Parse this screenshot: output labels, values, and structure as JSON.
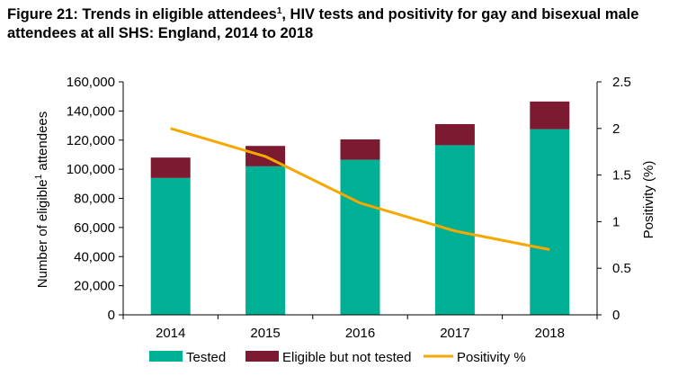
{
  "title": {
    "part1": "Figure 21: Trends in eligible attendees",
    "sup": "1",
    "part2": ", HIV tests and positivity for gay and bisexual male attendees at all SHS: England, 2014 to 2018"
  },
  "colors": {
    "tested": "#00b094",
    "eligible_not_tested": "#7b1a30",
    "positivity": "#f5a800",
    "axis": "#000000"
  },
  "chart_data": {
    "type": "bar",
    "stacked": true,
    "categories": [
      "2014",
      "2015",
      "2016",
      "2017",
      "2018"
    ],
    "series": [
      {
        "name": "Tested",
        "type": "bar",
        "axis": "left",
        "values": [
          94000,
          102000,
          106500,
          116500,
          127500
        ]
      },
      {
        "name": "Eligible but not tested",
        "type": "bar",
        "axis": "left",
        "values": [
          14000,
          14000,
          14000,
          14500,
          19000
        ]
      },
      {
        "name": "Positivity %",
        "type": "line",
        "axis": "right",
        "values": [
          2.0,
          1.7,
          1.2,
          0.9,
          0.7
        ]
      }
    ],
    "ylabel": {
      "main": "Number of eligible",
      "sup": "1",
      "rest": " attendees"
    },
    "y2label": "Positivity (%)",
    "ylim": [
      0,
      160000
    ],
    "y2lim": [
      0,
      2.5
    ],
    "yticks": [
      "0",
      "20,000",
      "40,000",
      "60,000",
      "80,000",
      "100,000",
      "120,000",
      "140,000",
      "160,000"
    ],
    "y2ticks": [
      "0",
      "0.5",
      "1",
      "1.5",
      "2",
      "2.5"
    ],
    "grid": false,
    "legend_position": "bottom"
  }
}
